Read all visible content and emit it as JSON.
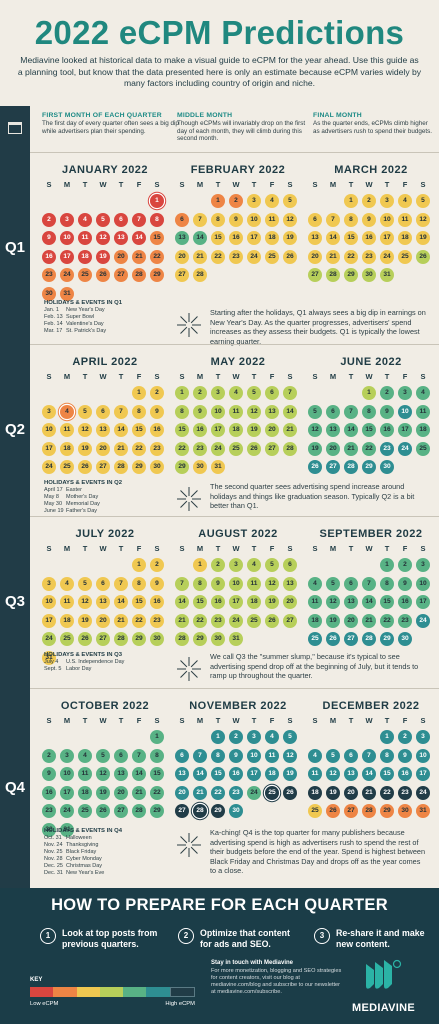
{
  "title": "2022 eCPM Predictions",
  "subtitle": "Mediavine looked at historical data to make a visual guide to eCPM for the year ahead. Use this guide as a planning tool, but know that the data presented here is only an estimate because eCPM varies widely by many factors including country of origin and niche.",
  "intro": [
    {
      "head": "First month of each quarter",
      "body": "The first day of every quarter often sees a big dip while advertisers plan their spending."
    },
    {
      "head": "Middle month",
      "body": "Though eCPMs will invariably drop on the first day of each month, they will climb during this second month."
    },
    {
      "head": "Final month",
      "body": "As the quarter ends, eCPMs climb higher as advertisers rush to spend their budgets."
    }
  ],
  "weekdays": [
    "S",
    "M",
    "T",
    "W",
    "T",
    "F",
    "S"
  ],
  "colors": {
    "1": "#d9463f",
    "2": "#ee8545",
    "3": "#f0c851",
    "4": "#b7cf5a",
    "5": "#58b285",
    "6": "#2e8e92",
    "7": "#213c47"
  },
  "quarters": [
    {
      "label": "Q1",
      "events_head": "HOLIDAYS & EVENTS IN Q1",
      "events": [
        [
          "Jan. 1",
          "New Year's Day"
        ],
        [
          "Feb. 13",
          "Super Bowl"
        ],
        [
          "Feb. 14",
          "Valentine's Day"
        ],
        [
          "Mar. 17",
          "St. Patrick's Day"
        ]
      ],
      "note": "Starting after the holidays, Q1 always sees a big dip in earnings on New Year's Day. As the quarter progresses, advertisers' spend increases as they assess their budgets. Q1 is typically the lowest earning quarter.",
      "months": [
        {
          "name": "JANUARY 2022",
          "start": 6,
          "days": 31,
          "levels": [
            1,
            1,
            1,
            1,
            1,
            1,
            1,
            1,
            1,
            1,
            1,
            1,
            1,
            1,
            2,
            1,
            1,
            1,
            1,
            2,
            2,
            2,
            2,
            2,
            2,
            2,
            2,
            2,
            2,
            2,
            2
          ],
          "ring": [
            1
          ]
        },
        {
          "name": "FEBRUARY 2022",
          "start": 2,
          "days": 28,
          "levels": [
            2,
            2,
            3,
            3,
            3,
            2,
            3,
            3,
            3,
            3,
            3,
            3,
            5,
            5,
            3,
            3,
            3,
            3,
            3,
            3,
            3,
            3,
            3,
            3,
            3,
            3,
            3,
            3
          ],
          "ring": []
        },
        {
          "name": "MARCH 2022",
          "start": 2,
          "days": 31,
          "levels": [
            3,
            3,
            3,
            3,
            3,
            3,
            3,
            3,
            3,
            3,
            3,
            3,
            3,
            3,
            3,
            3,
            3,
            3,
            3,
            3,
            3,
            3,
            3,
            3,
            3,
            4,
            4,
            4,
            4,
            4,
            4
          ],
          "ring": []
        }
      ]
    },
    {
      "label": "Q2",
      "events_head": "HOLIDAYS & EVENTS IN Q2",
      "events": [
        [
          "April 17",
          "Easter"
        ],
        [
          "May 8",
          "Mother's Day"
        ],
        [
          "May 30",
          "Memorial Day"
        ],
        [
          "June 19",
          "Father's Day"
        ]
      ],
      "note": "The second quarter sees advertising spend increase around holidays and things like graduation season. Typically Q2 is a bit better than Q1.",
      "months": [
        {
          "name": "APRIL 2022",
          "start": 5,
          "days": 30,
          "levels": [
            3,
            3,
            3,
            2,
            3,
            3,
            3,
            3,
            3,
            3,
            3,
            3,
            3,
            3,
            3,
            3,
            3,
            3,
            3,
            3,
            3,
            3,
            3,
            3,
            3,
            3,
            3,
            3,
            3,
            3
          ],
          "ring": [
            4
          ]
        },
        {
          "name": "MAY 2022",
          "start": 0,
          "days": 31,
          "levels": [
            4,
            4,
            4,
            4,
            4,
            4,
            4,
            4,
            4,
            4,
            4,
            4,
            4,
            4,
            4,
            4,
            4,
            4,
            4,
            4,
            4,
            4,
            4,
            4,
            4,
            4,
            4,
            4,
            4,
            3,
            3
          ],
          "ring": []
        },
        {
          "name": "JUNE 2022",
          "start": 3,
          "days": 30,
          "levels": [
            4,
            5,
            5,
            5,
            5,
            5,
            5,
            5,
            5,
            6,
            5,
            5,
            5,
            5,
            5,
            5,
            5,
            5,
            5,
            5,
            5,
            5,
            6,
            6,
            5,
            6,
            6,
            6,
            6,
            6
          ],
          "ring": []
        }
      ]
    },
    {
      "label": "Q3",
      "events_head": "HOLIDAYS & EVENTS IN Q3",
      "events": [
        [
          "July 4",
          "U.S. Independence Day"
        ],
        [
          "Sept. 5",
          "Labor Day"
        ]
      ],
      "note": "We call Q3 the \"summer slump,\" because it's typical to see advertising spend drop off at the beginning of July, but it tends to ramp up throughout the quarter.",
      "months": [
        {
          "name": "JULY 2022",
          "start": 5,
          "days": 31,
          "levels": [
            3,
            3,
            3,
            3,
            3,
            3,
            3,
            3,
            3,
            3,
            3,
            3,
            3,
            3,
            3,
            3,
            3,
            3,
            3,
            3,
            3,
            3,
            3,
            4,
            4,
            4,
            4,
            4,
            4,
            4,
            3
          ],
          "ring": []
        },
        {
          "name": "AUGUST 2022",
          "start": 1,
          "days": 31,
          "levels": [
            3,
            4,
            4,
            4,
            4,
            4,
            4,
            4,
            4,
            4,
            4,
            4,
            4,
            4,
            4,
            4,
            4,
            4,
            4,
            4,
            4,
            4,
            4,
            4,
            4,
            4,
            4,
            4,
            4,
            4,
            4
          ],
          "ring": []
        },
        {
          "name": "SEPTEMBER 2022",
          "start": 4,
          "days": 30,
          "levels": [
            5,
            5,
            5,
            5,
            5,
            5,
            5,
            5,
            5,
            5,
            5,
            5,
            5,
            5,
            5,
            5,
            5,
            5,
            5,
            5,
            5,
            5,
            5,
            6,
            6,
            6,
            6,
            6,
            6,
            6
          ],
          "ring": []
        }
      ]
    },
    {
      "label": "Q4",
      "events_head": "HOLIDAYS & EVENTS IN Q4",
      "events": [
        [
          "Oct. 31",
          "Halloween"
        ],
        [
          "Nov. 24",
          "Thanksgiving"
        ],
        [
          "Nov. 25",
          "Black Friday"
        ],
        [
          "Nov. 28",
          "Cyber Monday"
        ],
        [
          "Dec. 25",
          "Christmas Day"
        ],
        [
          "Dec. 31",
          "New Year's Eve"
        ]
      ],
      "note": "Ka-ching! Q4 is the top quarter for many publishers because advertising spend is high as advertisers rush to spend the rest of their budgets before the end of the year. Spend is highest between Black Friday and Christmas Day and drops off as the year comes to a close.",
      "months": [
        {
          "name": "OCTOBER 2022",
          "start": 6,
          "days": 31,
          "levels": [
            5,
            5,
            5,
            5,
            5,
            5,
            5,
            5,
            5,
            5,
            5,
            5,
            5,
            5,
            5,
            5,
            5,
            5,
            5,
            5,
            5,
            5,
            5,
            5,
            5,
            5,
            5,
            5,
            5,
            5,
            5
          ],
          "ring": []
        },
        {
          "name": "NOVEMBER 2022",
          "start": 2,
          "days": 30,
          "levels": [
            6,
            6,
            6,
            6,
            6,
            6,
            6,
            6,
            6,
            6,
            6,
            6,
            6,
            6,
            6,
            6,
            6,
            6,
            6,
            6,
            6,
            6,
            6,
            5,
            7,
            7,
            7,
            7,
            7,
            6
          ],
          "ring": [
            25,
            28
          ]
        },
        {
          "name": "DECEMBER 2022",
          "start": 4,
          "days": 31,
          "levels": [
            6,
            6,
            6,
            6,
            6,
            6,
            6,
            6,
            6,
            6,
            6,
            6,
            6,
            6,
            6,
            6,
            6,
            7,
            7,
            7,
            7,
            7,
            7,
            7,
            3,
            2,
            2,
            2,
            2,
            2,
            2
          ],
          "ring": []
        }
      ]
    }
  ],
  "prepare": {
    "title": "HOW TO PREPARE FOR EACH QUARTER",
    "steps": [
      {
        "num": "1",
        "text": "Look at top posts from previous quarters."
      },
      {
        "num": "2",
        "text": "Optimize that content for ads and SEO."
      },
      {
        "num": "3",
        "text": "Re-share it and make new content."
      }
    ]
  },
  "key": {
    "title": "KEY",
    "low": "Low eCPM",
    "high": "High eCPM"
  },
  "contact": {
    "head": "Stay in touch with Mediavine",
    "body": "For more monetization, blogging and SEO strategies for content creators, visit our blog at mediavine.com/blog and subscribe to our newsletter at mediavine.com/subscribe."
  },
  "brand": "MEDIAVINE"
}
